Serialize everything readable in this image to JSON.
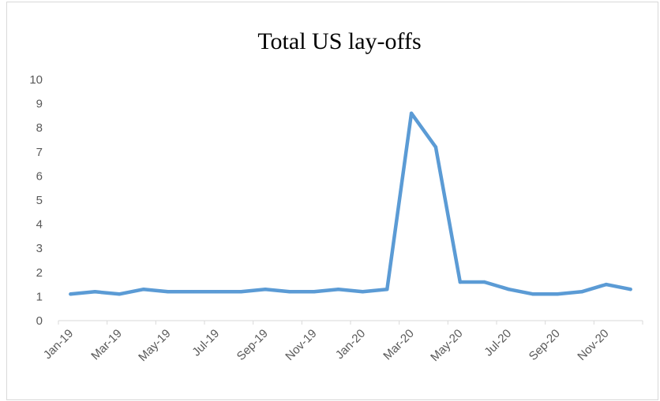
{
  "chart_data": {
    "type": "line",
    "title": "Total US lay-offs",
    "xlabel": "",
    "ylabel": "",
    "ylim": [
      0,
      10
    ],
    "yticks": [
      "0",
      "1",
      "2",
      "3",
      "4",
      "5",
      "6",
      "7",
      "8",
      "9",
      "10"
    ],
    "categories": [
      "Jan-19",
      "Feb-19",
      "Mar-19",
      "Apr-19",
      "May-19",
      "Jun-19",
      "Jul-19",
      "Aug-19",
      "Sep-19",
      "Oct-19",
      "Nov-19",
      "Dec-19",
      "Jan-20",
      "Feb-20",
      "Mar-20",
      "Apr-20",
      "May-20",
      "Jun-20",
      "Jul-20",
      "Aug-20",
      "Sep-20",
      "Oct-20",
      "Nov-20",
      "Dec-20"
    ],
    "xtick_labels": [
      "Jan-19",
      "Mar-19",
      "May-19",
      "Jul-19",
      "Sep-19",
      "Nov-19",
      "Jan-20",
      "Mar-20",
      "May-20",
      "Jul-20",
      "Sep-20",
      "Nov-20"
    ],
    "series": [
      {
        "values": [
          1.1,
          1.2,
          1.1,
          1.3,
          1.2,
          1.2,
          1.2,
          1.2,
          1.3,
          1.2,
          1.2,
          1.3,
          1.2,
          1.3,
          8.6,
          7.2,
          1.6,
          1.6,
          1.3,
          1.1,
          1.1,
          1.2,
          1.5,
          1.3
        ]
      }
    ],
    "line_color": "#5b9bd5",
    "grid": false,
    "legend": "none"
  }
}
